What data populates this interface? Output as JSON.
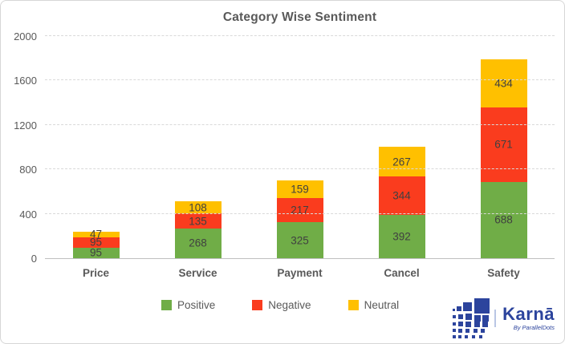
{
  "chart_data": {
    "type": "bar",
    "stacked": true,
    "title": "Category Wise Sentiment",
    "xlabel": "",
    "ylabel": "",
    "categories": [
      "Price",
      "Service",
      "Payment",
      "Cancel",
      "Safety"
    ],
    "series": [
      {
        "name": "Positive",
        "color": "#70AD47",
        "values": [
          95,
          268,
          325,
          392,
          688
        ]
      },
      {
        "name": "Negative",
        "color": "#FA3C1E",
        "values": [
          95,
          135,
          217,
          344,
          671
        ]
      },
      {
        "name": "Neutral",
        "color": "#FFC000",
        "values": [
          47,
          108,
          159,
          267,
          434
        ]
      }
    ],
    "ylim": [
      0,
      2000
    ],
    "yticks": [
      0,
      400,
      800,
      1200,
      1600,
      2000
    ],
    "grid": "dashed-horizontal",
    "legend_position": "bottom",
    "data_labels": true
  },
  "style": {
    "title_color": "#595959",
    "axis_label_color": "#595959",
    "data_label_color": "#404040",
    "gridline_color": "#D9D9D9",
    "axis_line_color": "#BFBFBF"
  },
  "branding": {
    "name": "Karnā",
    "tagline": "By ParallelDots",
    "color": "#2C449D",
    "logo": "pixel-squares-grid-icon"
  }
}
